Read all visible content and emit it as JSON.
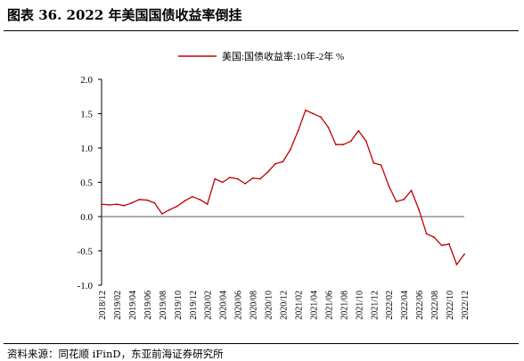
{
  "header": {
    "title": "图表 36. 2022 年美国国债收益率倒挂"
  },
  "footer": {
    "source": "资料来源：同花顺 iFinD，东亚前海证券研究所"
  },
  "chart_data": {
    "type": "line",
    "title": "",
    "xlabel": "",
    "ylabel": "",
    "ylim": [
      -1.0,
      2.0
    ],
    "yticks": [
      "2.0",
      "1.5",
      "1.0",
      "0.5",
      "0.0",
      "-0.5",
      "-1.0"
    ],
    "ytick_values": [
      2.0,
      1.5,
      1.0,
      0.5,
      0.0,
      -0.5,
      -1.0
    ],
    "xticks": [
      "2018/12",
      "2019/02",
      "2019/04",
      "2019/06",
      "2019/08",
      "2019/10",
      "2019/12",
      "2020/02",
      "2020/04",
      "2020/06",
      "2020/08",
      "2020/10",
      "2020/12",
      "2021/02",
      "2021/04",
      "2021/06",
      "2021/08",
      "2021/10",
      "2021/12",
      "2022/02",
      "2022/04",
      "2022/06",
      "2022/08",
      "2022/10",
      "2022/12"
    ],
    "legend_position": "top-center",
    "zero_line": true,
    "grid": false,
    "series": [
      {
        "name": "美国:国债收益率:10年-2年 %",
        "color": "#c00000",
        "x": [
          "2018/12",
          "2019/01",
          "2019/02",
          "2019/03",
          "2019/04",
          "2019/05",
          "2019/06",
          "2019/07",
          "2019/08",
          "2019/09",
          "2019/10",
          "2019/11",
          "2019/12",
          "2020/01",
          "2020/02",
          "2020/03",
          "2020/04",
          "2020/05",
          "2020/06",
          "2020/07",
          "2020/08",
          "2020/09",
          "2020/10",
          "2020/11",
          "2020/12",
          "2021/01",
          "2021/02",
          "2021/03",
          "2021/04",
          "2021/05",
          "2021/06",
          "2021/07",
          "2021/08",
          "2021/09",
          "2021/10",
          "2021/11",
          "2021/12",
          "2022/01",
          "2022/02",
          "2022/03",
          "2022/04",
          "2022/05",
          "2022/06",
          "2022/07",
          "2022/08",
          "2022/09",
          "2022/10",
          "2022/11",
          "2022/12"
        ],
        "values": [
          0.18,
          0.17,
          0.18,
          0.16,
          0.2,
          0.25,
          0.24,
          0.2,
          0.04,
          0.1,
          0.15,
          0.23,
          0.29,
          0.25,
          0.18,
          0.55,
          0.5,
          0.57,
          0.55,
          0.48,
          0.56,
          0.55,
          0.65,
          0.77,
          0.8,
          0.98,
          1.25,
          1.55,
          1.5,
          1.45,
          1.3,
          1.05,
          1.05,
          1.1,
          1.25,
          1.1,
          0.78,
          0.75,
          0.45,
          0.22,
          0.25,
          0.38,
          0.1,
          -0.25,
          -0.3,
          -0.42,
          -0.4,
          -0.7,
          -0.55
        ]
      }
    ]
  }
}
